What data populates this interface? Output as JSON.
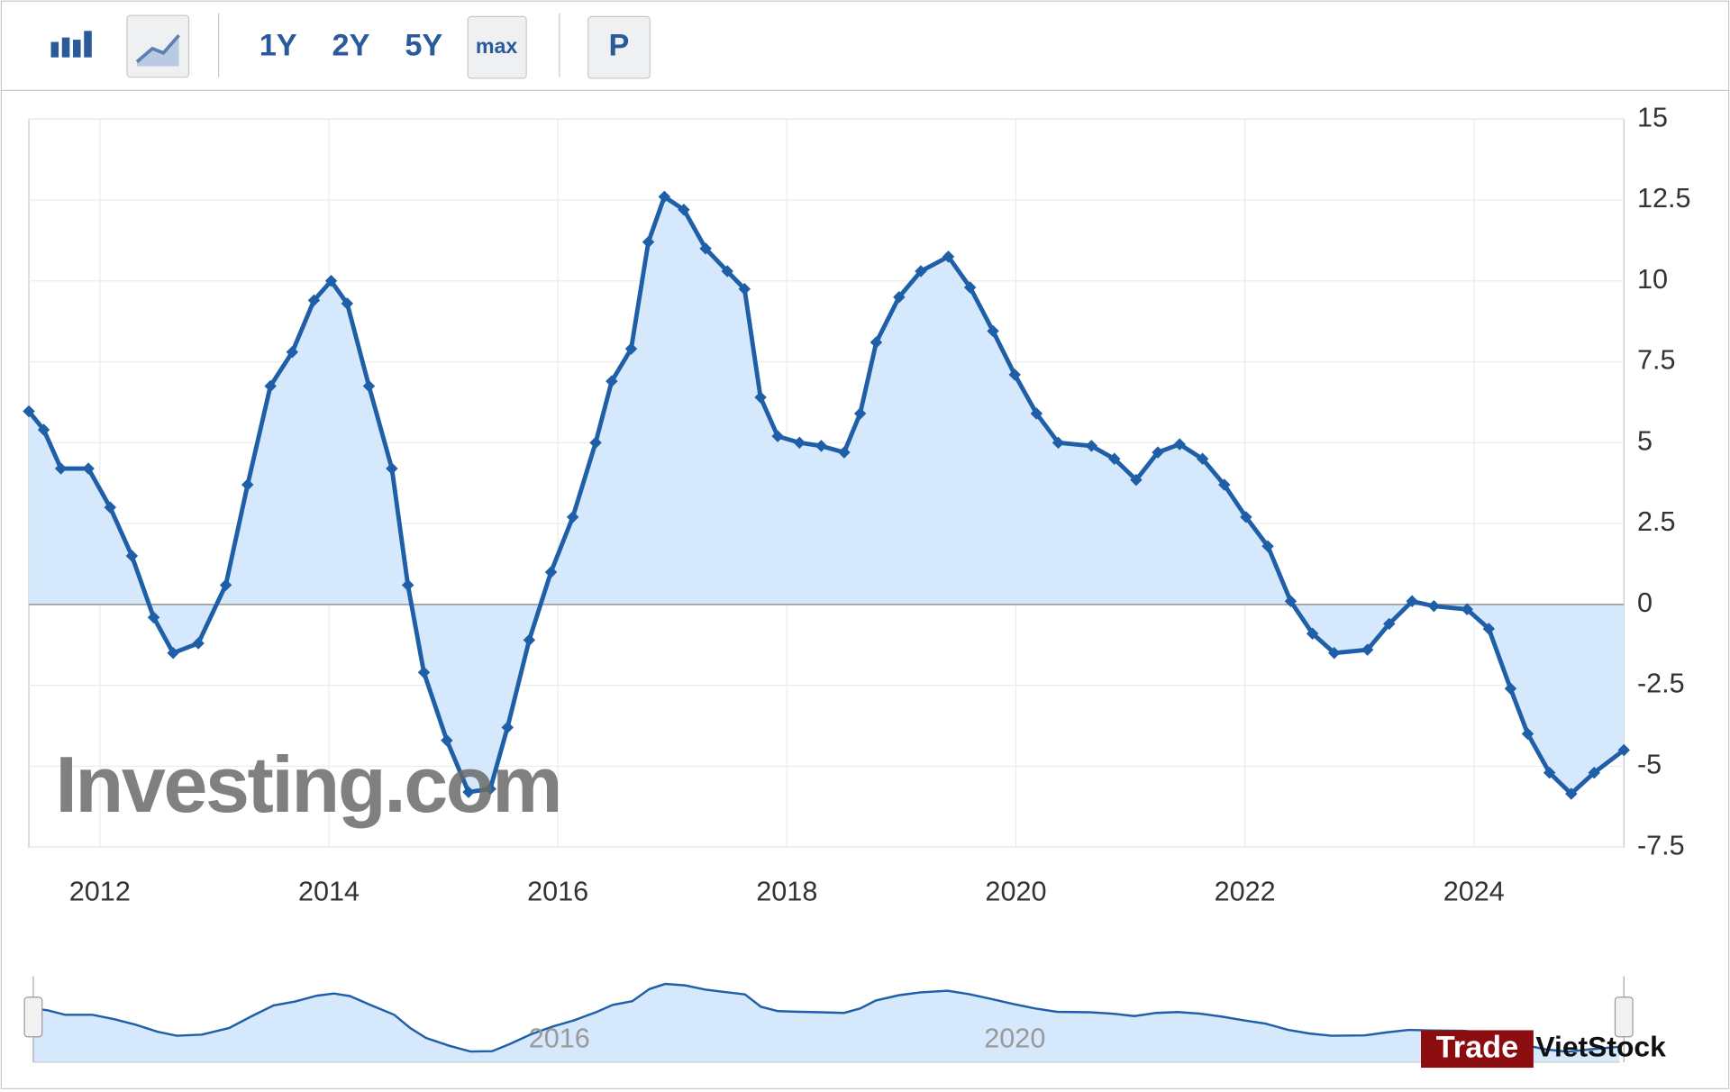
{
  "ui": {
    "toolbar": [
      "1Y",
      "2Y",
      "5Y",
      "max",
      "P"
    ],
    "watermark": "Investing.com",
    "badge": [
      "Trade",
      "VietStock"
    ]
  },
  "chart_data": {
    "type": "area",
    "x": [
      2011.38,
      2011.51,
      2011.66,
      2011.9,
      2012.09,
      2012.28,
      2012.47,
      2012.64,
      2012.86,
      2013.1,
      2013.29,
      2013.49,
      2013.68,
      2013.87,
      2014.02,
      2014.16,
      2014.35,
      2014.55,
      2014.69,
      2014.83,
      2015.03,
      2015.22,
      2015.41,
      2015.56,
      2015.75,
      2015.94,
      2016.13,
      2016.33,
      2016.47,
      2016.64,
      2016.79,
      2016.93,
      2017.1,
      2017.29,
      2017.48,
      2017.63,
      2017.77,
      2017.92,
      2018.11,
      2018.3,
      2018.5,
      2018.64,
      2018.78,
      2018.98,
      2019.17,
      2019.41,
      2019.6,
      2019.8,
      2019.99,
      2020.18,
      2020.37,
      2020.66,
      2020.86,
      2021.05,
      2021.24,
      2021.43,
      2021.63,
      2021.82,
      2022.01,
      2022.2,
      2022.4,
      2022.59,
      2022.78,
      2023.07,
      2023.26,
      2023.46,
      2023.65,
      2023.94,
      2024.13,
      2024.32,
      2024.47,
      2024.66,
      2024.85,
      2025.05,
      2025.31
    ],
    "series": [
      {
        "color": "#1f5fa8",
        "fill": "#d6e8fb",
        "values": [
          5.97,
          5.4,
          4.2,
          4.2,
          3.0,
          1.5,
          -0.4,
          -1.5,
          -1.2,
          0.6,
          3.7,
          6.75,
          7.8,
          9.4,
          10.0,
          9.3,
          6.75,
          4.2,
          0.6,
          -2.1,
          -4.2,
          -5.8,
          -5.7,
          -3.8,
          -1.1,
          1.0,
          2.7,
          5.0,
          6.9,
          7.9,
          11.2,
          12.6,
          12.2,
          11.0,
          10.3,
          9.75,
          6.4,
          5.2,
          5.0,
          4.9,
          4.7,
          5.9,
          8.1,
          9.5,
          10.3,
          10.75,
          9.8,
          8.45,
          7.1,
          5.9,
          5.0,
          4.9,
          4.5,
          3.85,
          4.7,
          4.95,
          4.5,
          3.7,
          2.7,
          1.8,
          0.1,
          -0.9,
          -1.5,
          -1.4,
          -0.6,
          0.1,
          -0.05,
          -0.15,
          -0.75,
          -2.6,
          -4.0,
          -5.2,
          -5.85,
          -5.2,
          -4.5
        ]
      }
    ],
    "xlim": [
      2011.38,
      2025.31
    ],
    "xticks": [
      2012,
      2014,
      2016,
      2018,
      2020,
      2022,
      2024
    ],
    "ylim": [
      -7.5,
      15
    ],
    "yticks": [
      15,
      12.5,
      10,
      7.5,
      5,
      2.5,
      0,
      -2.5,
      -5,
      -7.5
    ],
    "grid": true,
    "navigator_ticks": [
      2016,
      2020
    ]
  }
}
